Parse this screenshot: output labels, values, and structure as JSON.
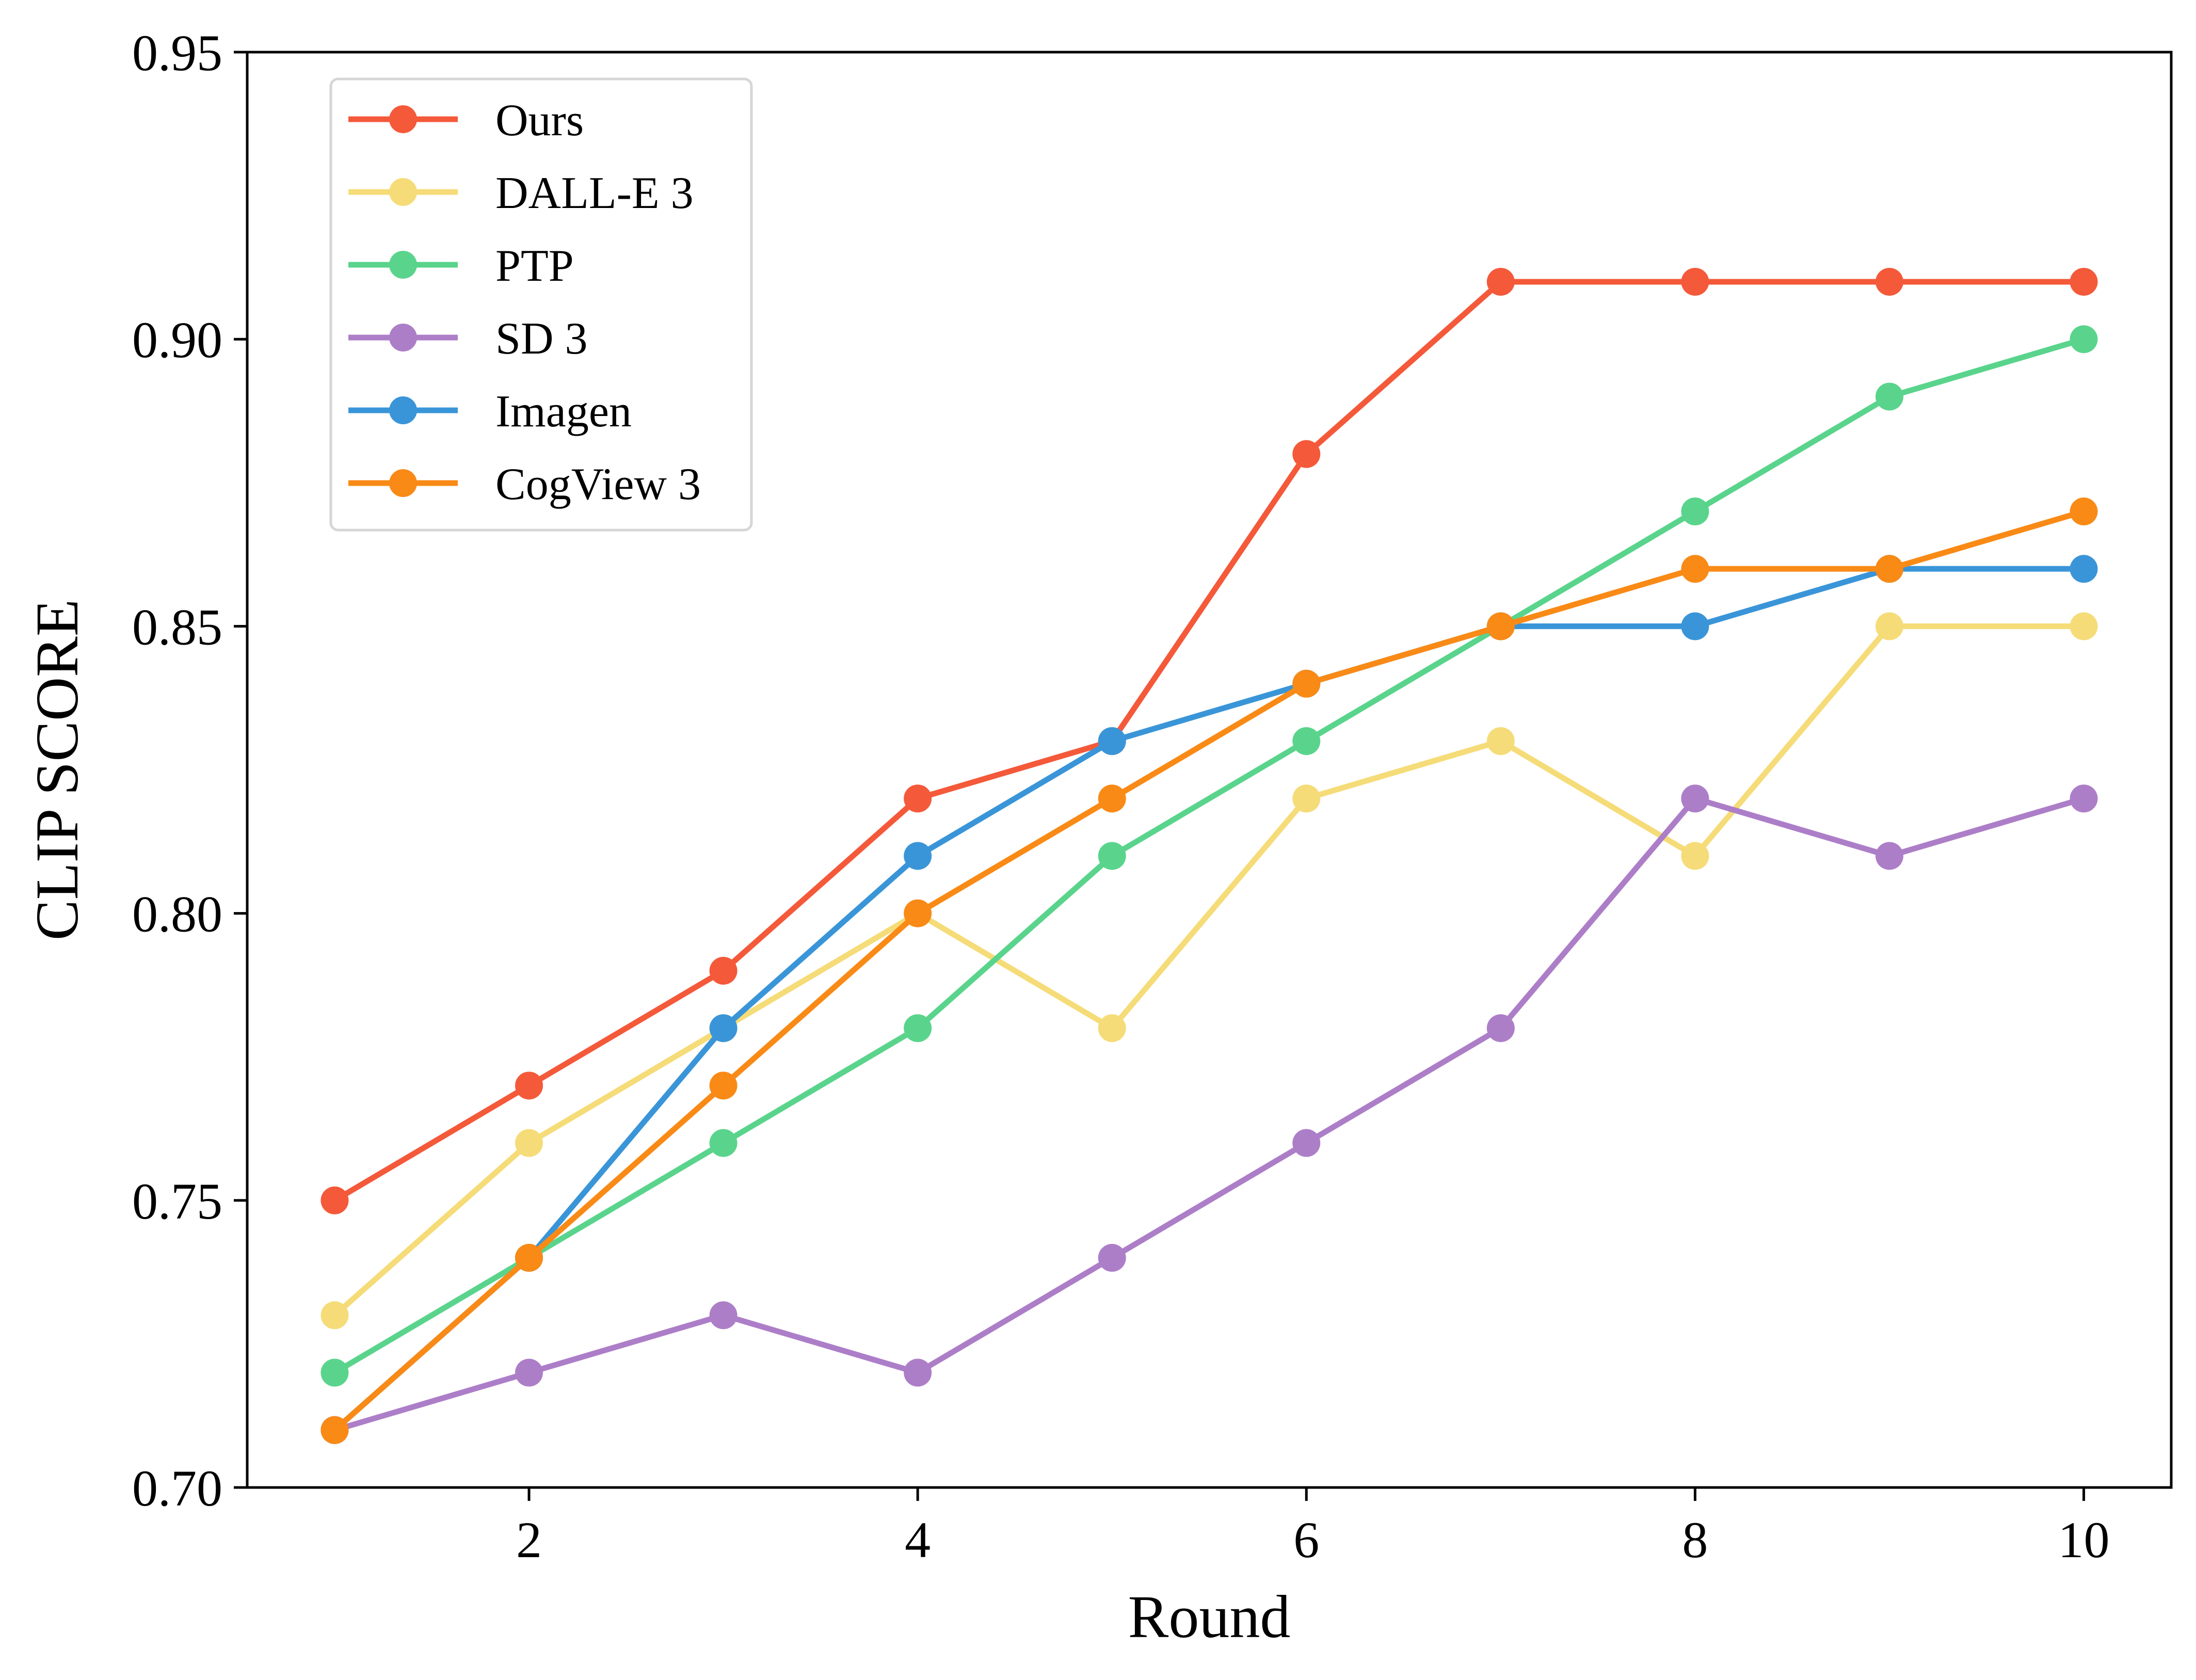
{
  "chart_data": {
    "type": "line",
    "title": "",
    "xlabel": "Round",
    "ylabel": "CLIP SCORE",
    "x": [
      1,
      2,
      3,
      4,
      5,
      6,
      7,
      8,
      9,
      10
    ],
    "xlim": [
      0.55,
      10.45
    ],
    "ylim": [
      0.7,
      0.95
    ],
    "x_ticks": [
      {
        "value": 2,
        "label": "2"
      },
      {
        "value": 4,
        "label": "4"
      },
      {
        "value": 6,
        "label": "6"
      },
      {
        "value": 8,
        "label": "8"
      },
      {
        "value": 10,
        "label": "10"
      }
    ],
    "y_ticks": [
      {
        "value": 0.7,
        "label": "0.70"
      },
      {
        "value": 0.75,
        "label": "0.75"
      },
      {
        "value": 0.8,
        "label": "0.80"
      },
      {
        "value": 0.85,
        "label": "0.85"
      },
      {
        "value": 0.9,
        "label": "0.90"
      },
      {
        "value": 0.95,
        "label": "0.95"
      }
    ],
    "grid": false,
    "legend_position": "top-left",
    "series": [
      {
        "name": "Ours",
        "color": "#f4593a",
        "values": [
          0.75,
          0.77,
          0.79,
          0.82,
          0.83,
          0.88,
          0.91,
          0.91,
          0.91,
          0.91
        ]
      },
      {
        "name": "DALL-E 3",
        "color": "#f5dc78",
        "values": [
          0.73,
          0.76,
          0.78,
          0.8,
          0.78,
          0.82,
          0.83,
          0.81,
          0.85,
          0.85
        ]
      },
      {
        "name": "PTP",
        "color": "#5ad48c",
        "values": [
          0.72,
          0.74,
          0.76,
          0.78,
          0.81,
          0.83,
          0.85,
          0.87,
          0.89,
          0.9
        ]
      },
      {
        "name": "SD 3",
        "color": "#ad7ec8",
        "values": [
          0.71,
          0.72,
          0.73,
          0.72,
          0.74,
          0.76,
          0.78,
          0.82,
          0.81,
          0.82
        ]
      },
      {
        "name": "Imagen",
        "color": "#3a95d8",
        "values": [
          0.71,
          0.74,
          0.78,
          0.81,
          0.83,
          0.84,
          0.85,
          0.85,
          0.86,
          0.86
        ]
      },
      {
        "name": "CogView 3",
        "color": "#f98a16",
        "values": [
          0.71,
          0.74,
          0.77,
          0.8,
          0.82,
          0.84,
          0.85,
          0.86,
          0.86,
          0.87
        ]
      }
    ]
  }
}
